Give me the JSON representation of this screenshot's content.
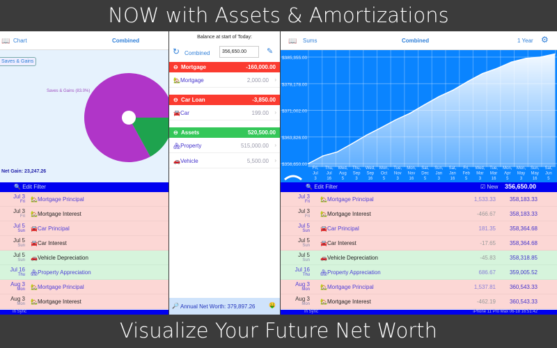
{
  "banner_top": "NOW with Assets & Amortizations",
  "banner_bottom": "Visualize Your Future Net Worth",
  "left": {
    "title": "Chart",
    "mode": "Combined",
    "legend_button": "Saves & Gains",
    "pie_label": "Saves & Gains (83.0%)",
    "net_gain": "Net Gain: 23,247.26",
    "filter": "Edit Filter",
    "sync": "In Sync"
  },
  "middle": {
    "balance_label": "Balance at start of Today:",
    "mode": "Combined",
    "balance_value": "356,650.00",
    "sections": [
      {
        "name": "Mortgage",
        "total": "-160,000.00",
        "color": "#fb3b30",
        "accounts": [
          {
            "name": "🏡Mortgage",
            "value": "2,000.00"
          }
        ]
      },
      {
        "name": "Car Loan",
        "total": "-3,850.00",
        "color": "#fb3b30",
        "accounts": [
          {
            "name": "🚘Car",
            "value": "199.00"
          }
        ]
      },
      {
        "name": "Assets",
        "total": "520,500.00",
        "color": "#34c759",
        "accounts": [
          {
            "name": "🏘Property",
            "value": "515,000.00"
          },
          {
            "name": "🚗Vehicle",
            "value": "5,500.00"
          }
        ]
      }
    ],
    "annual": "Annual Net Worth: 379,897.26"
  },
  "right": {
    "title": "Sums",
    "mode": "Combined",
    "range": "1 Year",
    "filter": "Edit Filter",
    "new": "New",
    "balance": "356,650.00",
    "sync": "In Sync",
    "device": "iPhone 11 Pro Max 06-18 16:51:42"
  },
  "transactions": [
    {
      "date": "Jul 3",
      "day": "Fri",
      "name": "Mortgage Principal",
      "icon": "🏡",
      "amount": "1,533.33",
      "balance": "358,183.33",
      "type": "r",
      "blue": true
    },
    {
      "date": "Jul 3",
      "day": "Fri",
      "name": "Mortgage Interest",
      "icon": "🏡",
      "amount": "-466.67",
      "balance": "358,183.33",
      "type": "r",
      "blue": false
    },
    {
      "date": "Jul 5",
      "day": "Sun",
      "name": "Car Principal",
      "icon": "🚘",
      "amount": "181.35",
      "balance": "358,364.68",
      "type": "r",
      "blue": true
    },
    {
      "date": "Jul 5",
      "day": "Sun",
      "name": "Car Interest",
      "icon": "🚘",
      "amount": "-17.65",
      "balance": "358,364.68",
      "type": "r",
      "blue": false
    },
    {
      "date": "Jul 5",
      "day": "Sun",
      "name": "Vehicle Depreciation",
      "icon": "🚗",
      "amount": "-45.83",
      "balance": "358,318.85",
      "type": "g",
      "blue": false
    },
    {
      "date": "Jul 16",
      "day": "Thu",
      "name": "Property Appreciation",
      "icon": "🏘",
      "amount": "686.67",
      "balance": "359,005.52",
      "type": "g",
      "blue": true
    },
    {
      "date": "Aug 3",
      "day": "Mon",
      "name": "Mortgage Principal",
      "icon": "🏡",
      "amount": "1,537.81",
      "balance": "360,543.33",
      "type": "r",
      "blue": true
    },
    {
      "date": "Aug 3",
      "day": "Mon",
      "name": "Mortgage Interest",
      "icon": "🏡",
      "amount": "-462.19",
      "balance": "360,543.33",
      "type": "r",
      "blue": false
    }
  ],
  "chart_data": {
    "type": "area",
    "y_ticks": [
      "$356,650.00",
      "$363,826.00",
      "$371,002.00",
      "$378,178.00",
      "$385,355.00"
    ],
    "ylim": [
      356650,
      385355
    ],
    "x_labels": [
      "Fri, Jul 3",
      "Thu, Jul 16",
      "Wed, Aug 5",
      "Thu, Sep 3",
      "Wed, Sep 16",
      "Mon, Oct 5",
      "Tue, Nov 3",
      "Mon, Nov 16",
      "Sat, Dec 5",
      "Sun, Jan 3",
      "Sat, Jan 16",
      "Fri, Feb 5",
      "Wed, Mar 3",
      "Tue, Mar 16",
      "Mon, Apr 5",
      "Mon, May 3",
      "Sun, May 16",
      "Sat, Jun 5"
    ],
    "values": [
      356650,
      358700,
      359800,
      362000,
      364300,
      366300,
      368400,
      370200,
      372500,
      374700,
      376500,
      378800,
      380900,
      382300,
      384000,
      385000,
      385355,
      386200
    ],
    "fill": "#ffffff",
    "background": "#0a84ff",
    "grid": true
  },
  "pie": {
    "type": "pie",
    "slices": [
      {
        "name": "Saves & Gains",
        "percent": 83.0,
        "color": "#b035c8"
      },
      {
        "percent": 17.0,
        "color": "#1ea34e"
      }
    ]
  }
}
